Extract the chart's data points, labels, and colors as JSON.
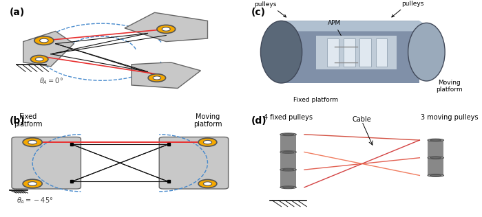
{
  "figure_width": 7.0,
  "figure_height": 3.16,
  "dpi": 100,
  "bg_color": "#ffffff",
  "panel_labels": [
    "(a)",
    "(b)",
    "(c)",
    "(d)"
  ],
  "panel_label_fontsize": 10,
  "gray_platform": "#a0a0a0",
  "dark_gray": "#808080",
  "orange_pulley": "#f5a800",
  "red_cable": "#e83030",
  "blue_dashed": "#4488cc",
  "black_cable": "#222222",
  "annotation_fontsize": 8,
  "small_fontsize": 7
}
